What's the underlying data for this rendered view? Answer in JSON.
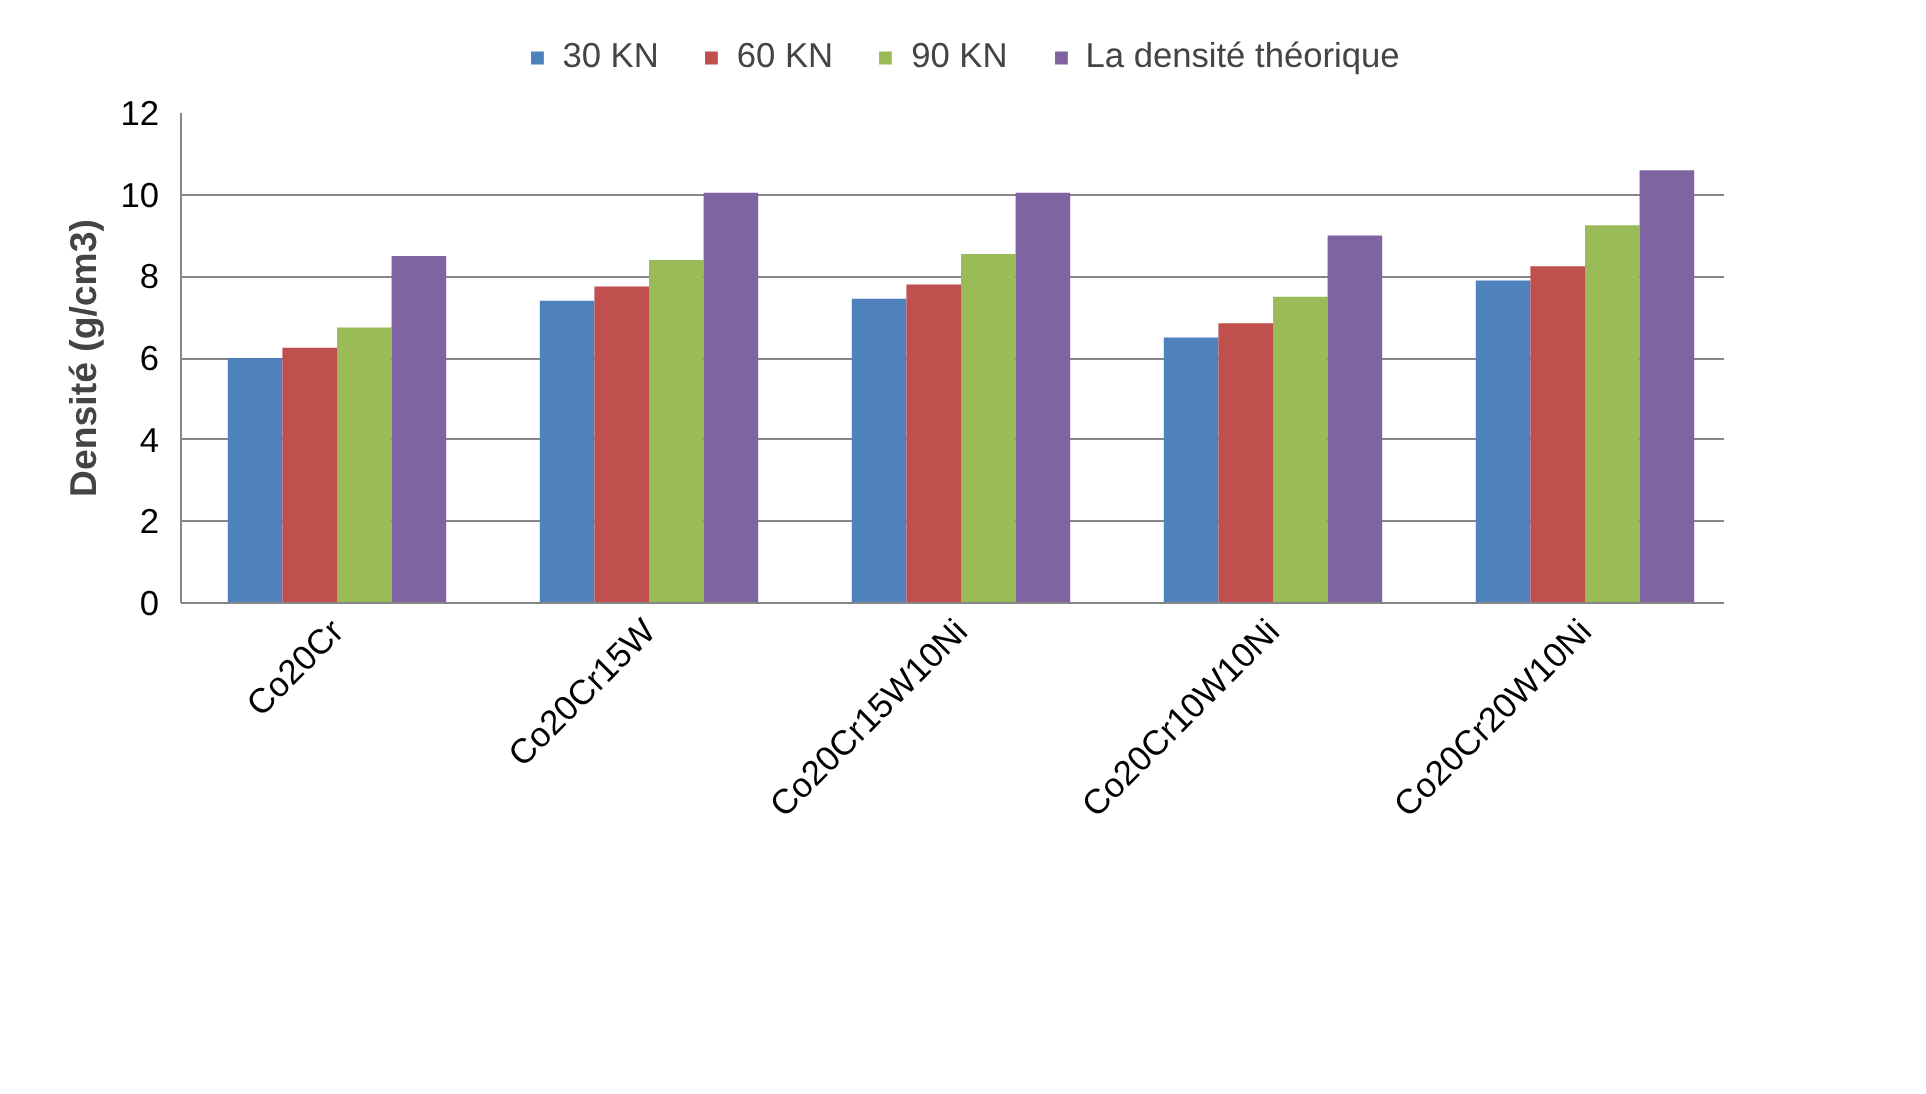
{
  "chart_data": {
    "type": "bar",
    "ylabel": "Densité (g/cm3)",
    "categories": [
      "Co20Cr",
      "Co20Cr15W",
      "Co20Cr15W10Ni",
      "Co20Cr10W10Ni",
      "Co20Cr20W10Ni"
    ],
    "series": [
      {
        "name": "30 KN",
        "color": "#4f81bd",
        "values": [
          6.0,
          7.4,
          7.45,
          6.5,
          7.9
        ]
      },
      {
        "name": "60 KN",
        "color": "#c0504d",
        "values": [
          6.25,
          7.75,
          7.8,
          6.85,
          8.25
        ]
      },
      {
        "name": "90 KN",
        "color": "#9bbb59",
        "values": [
          6.75,
          8.4,
          8.55,
          7.5,
          9.25
        ]
      },
      {
        "name": "La densité théorique",
        "color": "#8064a2",
        "values": [
          8.5,
          10.05,
          10.05,
          9.0,
          10.6
        ]
      }
    ],
    "ylim": [
      0,
      12
    ],
    "yticks": [
      0,
      2,
      4,
      6,
      8,
      10,
      12
    ],
    "grid": "y",
    "legend": "top"
  }
}
